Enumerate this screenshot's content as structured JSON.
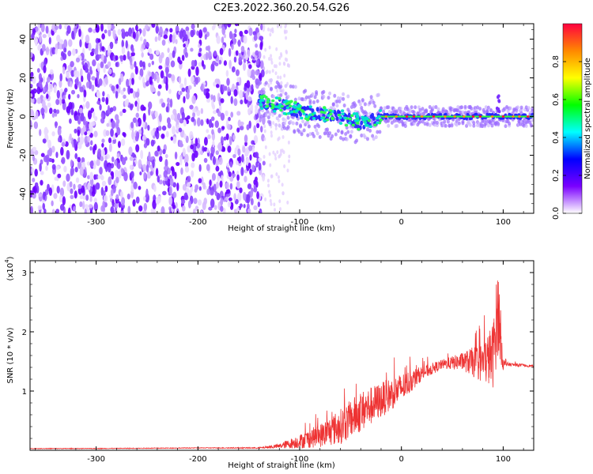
{
  "title": "C2E3.2022.360.20.54.G26",
  "chart_data": [
    {
      "type": "heatmap",
      "xlabel": "Height of straight line (km)",
      "ylabel": "Frequency (Hz)",
      "xlim": [
        -365,
        130
      ],
      "ylim": [
        -50,
        48
      ],
      "xticks": [
        -300,
        -200,
        -100,
        0,
        100
      ],
      "yticks": [
        -40,
        -20,
        0,
        20,
        40
      ],
      "grid": false,
      "colorbar": {
        "label": "Normalized spectral amplitude",
        "range": [
          0,
          1
        ],
        "ticks": [
          0.0,
          0.2,
          0.4,
          0.6,
          0.8
        ],
        "colors": [
          "#ffffff",
          "#7a00ff",
          "#0000ff",
          "#00ffff",
          "#00ff00",
          "#ffff00",
          "#ff8800",
          "#ff0040"
        ]
      },
      "features": {
        "noise_region_x": [
          -365,
          -135
        ],
        "tone_start_x": -140,
        "tone_center_hz": [
          [
            -140,
            8
          ],
          [
            -120,
            6
          ],
          [
            -100,
            3
          ],
          [
            -80,
            1
          ],
          [
            -60,
            0
          ],
          [
            -40,
            -3
          ],
          [
            -20,
            0
          ],
          [
            0,
            0
          ],
          [
            50,
            0
          ],
          [
            100,
            0
          ],
          [
            130,
            0
          ]
        ]
      }
    },
    {
      "type": "line",
      "xlabel": "Height of straight line (km)",
      "ylabel": "SNR (10 * v/v)",
      "yscale_note": "(x10",
      "yscale_exp": "4",
      "yscale_close": ")",
      "xlim": [
        -365,
        130
      ],
      "ylim": [
        0,
        3.2
      ],
      "xticks": [
        -300,
        -200,
        -100,
        0,
        100
      ],
      "yticks": [
        1,
        2,
        3
      ],
      "color": "#ee3333",
      "grid": false,
      "series": [
        {
          "x": [
            -365,
            -300,
            -200,
            -140,
            -120,
            -100,
            -80,
            -60,
            -40,
            -20,
            0,
            20,
            40,
            60,
            80,
            90,
            95,
            100,
            105,
            130
          ],
          "y": [
            0.03,
            0.03,
            0.04,
            0.04,
            0.07,
            0.15,
            0.25,
            0.4,
            0.65,
            0.85,
            1.05,
            1.3,
            1.45,
            1.5,
            1.48,
            1.6,
            2.4,
            1.45,
            1.45,
            1.42
          ],
          "noise_amp": [
            0.005,
            0.005,
            0.006,
            0.01,
            0.04,
            0.12,
            0.2,
            0.3,
            0.35,
            0.3,
            0.25,
            0.12,
            0.08,
            0.15,
            0.35,
            0.55,
            0.8,
            0.1,
            0.03,
            0.02
          ]
        }
      ]
    }
  ]
}
